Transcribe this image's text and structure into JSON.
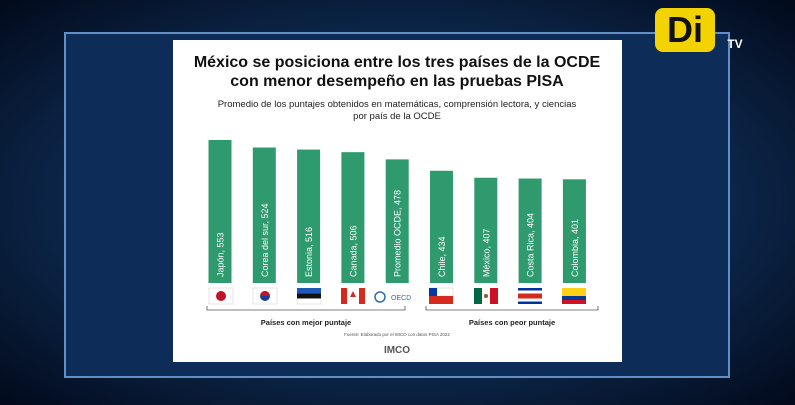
{
  "channel_logo": {
    "brand": "Di",
    "suffix": "TV"
  },
  "chart_data": {
    "type": "bar",
    "title": [
      "México se posiciona entre los tres países de la OCDE",
      "con menor desempeño en las pruebas PISA"
    ],
    "subtitle": [
      "Promedio de los puntajes obtenidos en matemáticas, comprensión lectora, y ciencias",
      "por país de la OCDE"
    ],
    "values": [
      553,
      524,
      516,
      506,
      478,
      434,
      407,
      404,
      401
    ],
    "value_labels": [
      "Japón, 553",
      "Corea del sur, 524",
      "Estonia, 516",
      "Canada, 506",
      "Promedio OCDE, 478",
      "Chile, 434",
      "México, 407",
      "Costa Rica, 404",
      "Colombia, 401"
    ],
    "color": "#2e9a6d",
    "groups": [
      "Países con mejor puntaje",
      "Países con peor puntaje"
    ],
    "oecd_logo": "OECD",
    "source": "Fuente: Elaborado por el IMCO con datos PISA 2022",
    "publisher": "IMCO"
  }
}
